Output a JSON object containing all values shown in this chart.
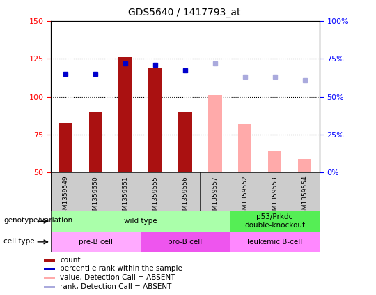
{
  "title": "GDS5640 / 1417793_at",
  "samples": [
    "GSM1359549",
    "GSM1359550",
    "GSM1359551",
    "GSM1359555",
    "GSM1359556",
    "GSM1359557",
    "GSM1359552",
    "GSM1359553",
    "GSM1359554"
  ],
  "bar_values": [
    83,
    90,
    126,
    119,
    90,
    null,
    null,
    null,
    null
  ],
  "bar_absent_values": [
    null,
    null,
    null,
    null,
    null,
    101,
    82,
    64,
    59
  ],
  "rank_values": [
    115,
    115,
    122,
    121,
    117,
    null,
    null,
    null,
    null
  ],
  "rank_absent_values": [
    null,
    null,
    null,
    null,
    null,
    122,
    113,
    113,
    111
  ],
  "ylim_left": [
    50,
    150
  ],
  "ylim_right": [
    0,
    100
  ],
  "yticks_left": [
    50,
    75,
    100,
    125,
    150
  ],
  "yticks_right": [
    0,
    25,
    50,
    75,
    100
  ],
  "bar_color": "#aa1111",
  "bar_absent_color": "#ffaaaa",
  "rank_color": "#0000cc",
  "rank_absent_color": "#aaaadd",
  "dotted_lines": [
    75,
    100,
    125
  ],
  "genotype_groups": [
    {
      "label": "wild type",
      "start": 0,
      "end": 6,
      "color": "#aaffaa"
    },
    {
      "label": "p53/Prkdc\ndouble-knockout",
      "start": 6,
      "end": 9,
      "color": "#55ee55"
    }
  ],
  "celltype_groups": [
    {
      "label": "pre-B cell",
      "start": 0,
      "end": 3,
      "color": "#ffaaff"
    },
    {
      "label": "pro-B cell",
      "start": 3,
      "end": 6,
      "color": "#ee55ee"
    },
    {
      "label": "leukemic B-cell",
      "start": 6,
      "end": 9,
      "color": "#ff88ff"
    }
  ],
  "legend_items": [
    {
      "label": "count",
      "color": "#aa1111"
    },
    {
      "label": "percentile rank within the sample",
      "color": "#0000cc"
    },
    {
      "label": "value, Detection Call = ABSENT",
      "color": "#ffaaaa"
    },
    {
      "label": "rank, Detection Call = ABSENT",
      "color": "#aaaadd"
    }
  ],
  "left_labels": [
    "genotype/variation",
    "cell type"
  ],
  "sample_bg_color": "#cccccc"
}
